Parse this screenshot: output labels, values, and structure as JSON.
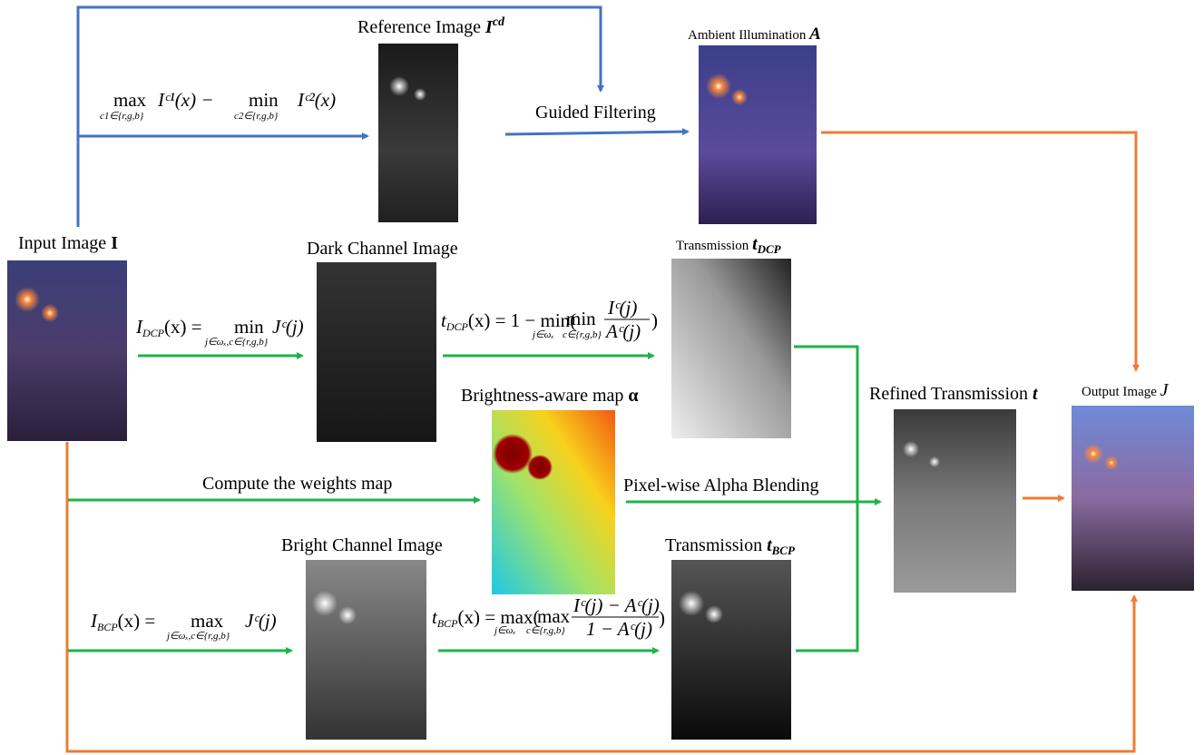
{
  "labels": {
    "reference": {
      "text": "Reference Image",
      "symbol": "I",
      "sup": "cd"
    },
    "ambient": {
      "text": "Ambient Illumination",
      "symbol": "A"
    },
    "input": {
      "text": "Input Image",
      "symbol": "I"
    },
    "dark": "Dark Channel Image",
    "t_dcp": {
      "text": "Transmission",
      "symbol": "t",
      "sub": "DCP"
    },
    "brightness": {
      "text": "Brightness-aware map",
      "symbol": "α"
    },
    "refined": {
      "text": "Refined Transmission",
      "symbol": "t"
    },
    "output": {
      "text": "Output Image",
      "symbol": "J"
    },
    "bright": "Bright Channel Image",
    "t_bcp": {
      "text": "Transmission",
      "symbol": "t",
      "sub": "BCP"
    }
  },
  "steps": {
    "guided": "Guided Filtering",
    "weights": "Compute the weights map",
    "blending": "Pixel-wise Alpha Blending"
  },
  "formulas": {
    "reference": {
      "op1": "max",
      "lim1": "c1∈{r,g,b}",
      "term1": "Iᶜ¹(x) −",
      "op2": "min",
      "lim2": "c2∈{r,g,b}",
      "term2": "Iᶜ²(x)"
    },
    "dcp": {
      "lhs": "I",
      "sub": "DCP",
      "eq": "(x) =",
      "op": "min",
      "lim": "j∈ωₓ,c∈{r,g,b}",
      "term": "Jᶜ(j)"
    },
    "t_dcp": {
      "lhs": "t",
      "sub": "DCP",
      "eq": "(x) = 1 − min(",
      "lim1": "j∈ωₓ",
      "op2": "min",
      "lim2": "c∈{r,g,b}",
      "num": "Iᶜ(j)",
      "den": "Aᶜ(j)",
      "close": ")"
    },
    "bcp": {
      "lhs": "I",
      "sub": "BCP",
      "eq": "(x) =",
      "op": "max",
      "lim": "j∈ωₓ,c∈{r,g,b}",
      "term": "Jᶜ(j)"
    },
    "t_bcp": {
      "lhs": "t",
      "sub": "BCP",
      "eq": "(x) = max(",
      "lim1": "j∈ωₓ",
      "op2": "max",
      "lim2": "c∈{r,g,b}",
      "num": "Iᶜ(j) − Aᶜ(j)",
      "den": "1 − Aᶜ(j)",
      "close": ")"
    }
  }
}
